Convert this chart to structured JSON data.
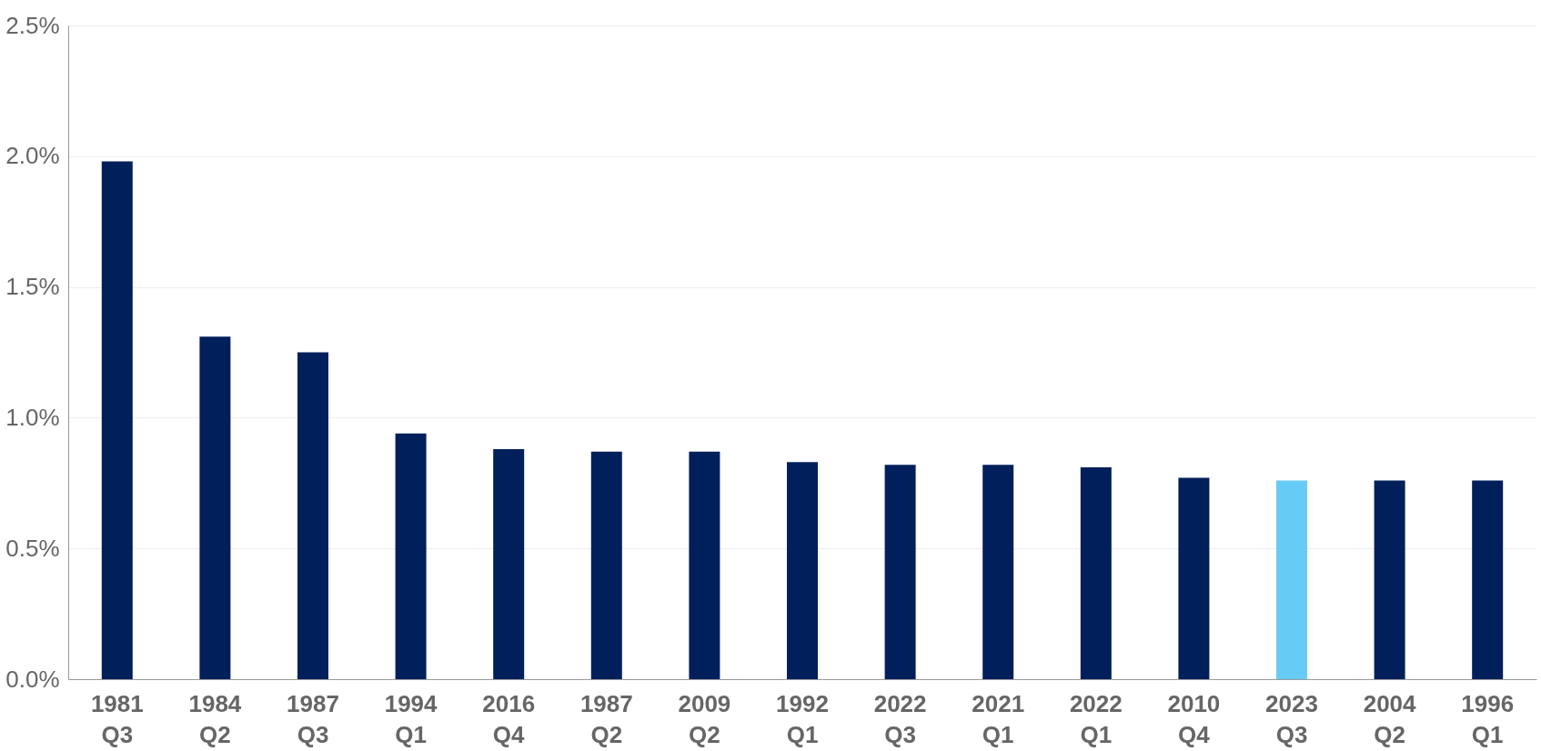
{
  "chart_data": {
    "type": "bar",
    "categories": [
      "1981 Q3",
      "1984 Q2",
      "1987 Q3",
      "1994 Q1",
      "2016 Q4",
      "1987 Q2",
      "2009 Q2",
      "1992 Q1",
      "2022 Q3",
      "2021 Q1",
      "2022 Q1",
      "2010 Q4",
      "2023 Q3",
      "2004 Q2",
      "1996 Q1"
    ],
    "values": [
      1.98,
      1.31,
      1.25,
      0.94,
      0.88,
      0.87,
      0.87,
      0.83,
      0.82,
      0.82,
      0.81,
      0.77,
      0.76,
      0.76,
      0.76
    ],
    "colors": [
      "#001f5b",
      "#001f5b",
      "#001f5b",
      "#001f5b",
      "#001f5b",
      "#001f5b",
      "#001f5b",
      "#001f5b",
      "#001f5b",
      "#001f5b",
      "#001f5b",
      "#001f5b",
      "#66ccf5",
      "#001f5b",
      "#001f5b"
    ],
    "ylim": [
      0,
      2.5
    ],
    "yticks": [
      {
        "value": 0,
        "label": "0.0%"
      },
      {
        "value": 0.5,
        "label": "0.5%"
      },
      {
        "value": 1,
        "label": "1.0%"
      },
      {
        "value": 1.5,
        "label": "1.5%"
      },
      {
        "value": 2,
        "label": "2.0%"
      },
      {
        "value": 2.5,
        "label": "2.5%"
      }
    ],
    "grid": "y"
  }
}
